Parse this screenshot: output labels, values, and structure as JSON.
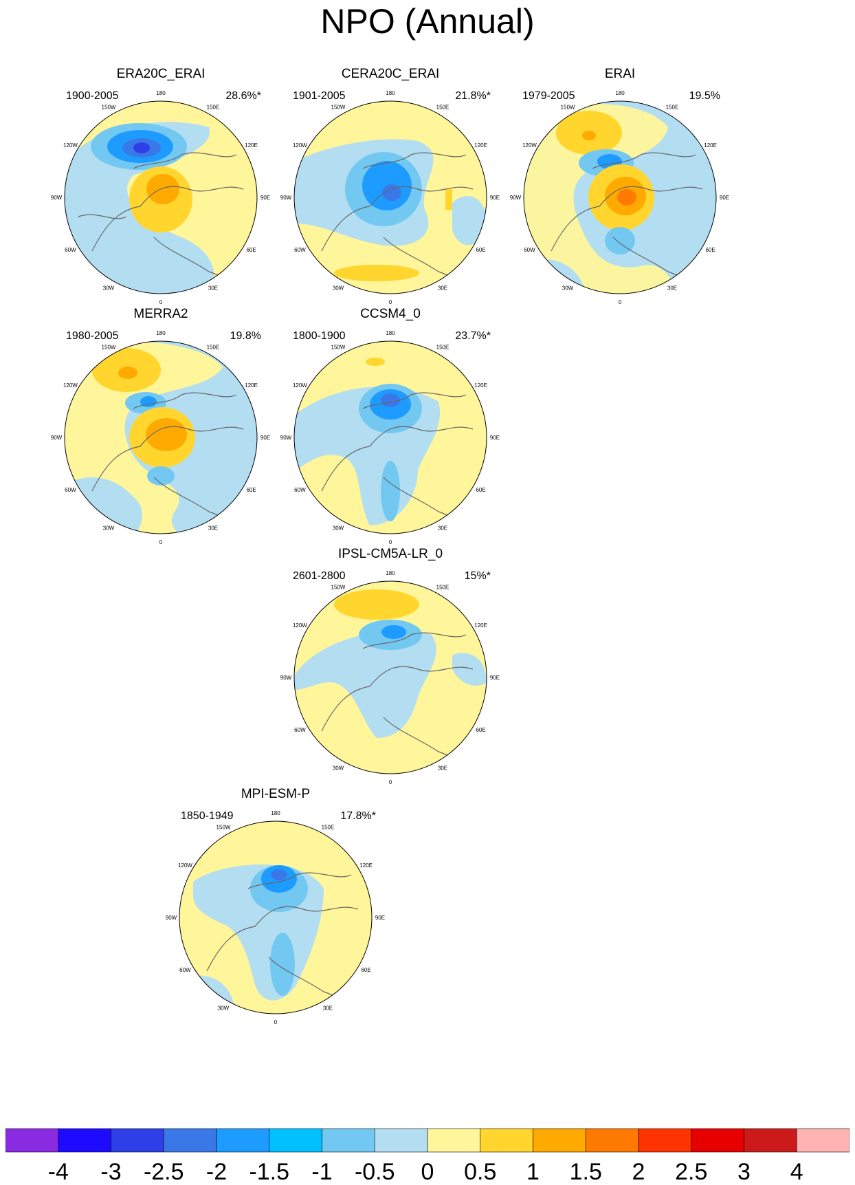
{
  "figure": {
    "title": "NPO (Annual)"
  },
  "panels": [
    {
      "id": "era20c-erai",
      "title": "ERA20C_ERAI",
      "period": "1900-2005",
      "variance": "28.6%*"
    },
    {
      "id": "cera20c-erai",
      "title": "CERA20C_ERAI",
      "period": "1901-2005",
      "variance": "21.8%*"
    },
    {
      "id": "erai",
      "title": "ERAI",
      "period": "1979-2005",
      "variance": "19.5%"
    },
    {
      "id": "merra2",
      "title": "MERRA2",
      "period": "1980-2005",
      "variance": "19.8%"
    },
    {
      "id": "ccsm4",
      "title": "CCSM4_0",
      "period": "1800-1900",
      "variance": "23.7%*"
    },
    {
      "id": "ipsl",
      "title": "IPSL-CM5A-LR_0",
      "period": "2601-2800",
      "variance": "15%*"
    },
    {
      "id": "mpi",
      "title": "MPI-ESM-P",
      "period": "1850-1949",
      "variance": "17.8%*"
    }
  ],
  "longitude_labels": [
    "180",
    "150E",
    "120E",
    "90E",
    "60E",
    "30E",
    "0",
    "30W",
    "60W",
    "90W",
    "120W",
    "150W"
  ],
  "colorbar": {
    "labels": [
      "-4",
      "-3",
      "-2.5",
      "-2",
      "-1.5",
      "-1",
      "-0.5",
      "0",
      "0.5",
      "1",
      "1.5",
      "2",
      "2.5",
      "3",
      "4"
    ],
    "colors": [
      "#8a2be2",
      "#1e0aff",
      "#2e3fe8",
      "#3a78e8",
      "#1e9bff",
      "#00c0ff",
      "#73c8f2",
      "#b3def2",
      "#fff59a",
      "#ffd52e",
      "#ffaa00",
      "#ff7a00",
      "#ff3300",
      "#e60000",
      "#cc1a1a",
      "#ffb3b3"
    ]
  },
  "palette": {
    "ocean_base": "#fff59a",
    "coast": "#666666"
  }
}
